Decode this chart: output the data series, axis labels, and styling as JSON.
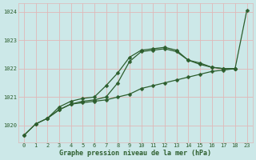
{
  "title": "Graphe pression niveau de la mer (hPa)",
  "bg_color": "#cce8e8",
  "grid_color": "#e0b8b8",
  "line_color": "#2d5e2d",
  "xlim": [
    -0.5,
    23.5
  ],
  "ylim": [
    1019.4,
    1024.3
  ],
  "xtick_labels": [
    "0",
    "1",
    "2",
    "3",
    "4",
    "5",
    "6",
    "7",
    "8",
    "9",
    "10",
    "11",
    "12",
    "13",
    "14",
    "15",
    "16",
    "17",
    "18",
    "23"
  ],
  "yticks": [
    1020,
    1021,
    1022,
    1023,
    1024
  ],
  "line1_x": [
    0,
    1,
    2,
    3,
    4,
    5,
    6,
    7,
    8,
    9,
    10,
    11,
    12,
    13,
    14,
    15,
    16,
    17,
    18,
    23
  ],
  "line1_y": [
    1019.65,
    1020.05,
    1020.25,
    1020.55,
    1020.75,
    1020.8,
    1020.85,
    1020.9,
    1021.0,
    1021.1,
    1021.3,
    1021.4,
    1021.5,
    1021.6,
    1021.7,
    1021.8,
    1021.9,
    1021.95,
    1022.0,
    1024.05
  ],
  "line2_x": [
    0,
    1,
    2,
    3,
    4,
    5,
    6,
    7,
    8,
    9,
    10,
    11,
    12,
    13,
    14,
    15,
    16,
    17,
    18
  ],
  "line2_y": [
    1019.65,
    1020.05,
    1020.25,
    1020.55,
    1020.75,
    1020.85,
    1020.9,
    1021.0,
    1021.5,
    1022.25,
    1022.6,
    1022.65,
    1022.7,
    1022.6,
    1022.3,
    1022.15,
    1022.05,
    1022.0,
    1022.0
  ],
  "line3_x": [
    2,
    3,
    4,
    5,
    6,
    7,
    8,
    9,
    10,
    11,
    12,
    13,
    14,
    15,
    16,
    17,
    18
  ],
  "line3_y": [
    1020.25,
    1020.65,
    1020.85,
    1020.95,
    1021.0,
    1021.4,
    1021.85,
    1022.4,
    1022.65,
    1022.7,
    1022.75,
    1022.65,
    1022.3,
    1022.2,
    1022.05,
    1022.0,
    1022.0
  ],
  "marker": "D",
  "markersize": 2.5,
  "linewidth": 0.9,
  "tick_fontsize": 5.0,
  "xlabel_fontsize": 6.0
}
